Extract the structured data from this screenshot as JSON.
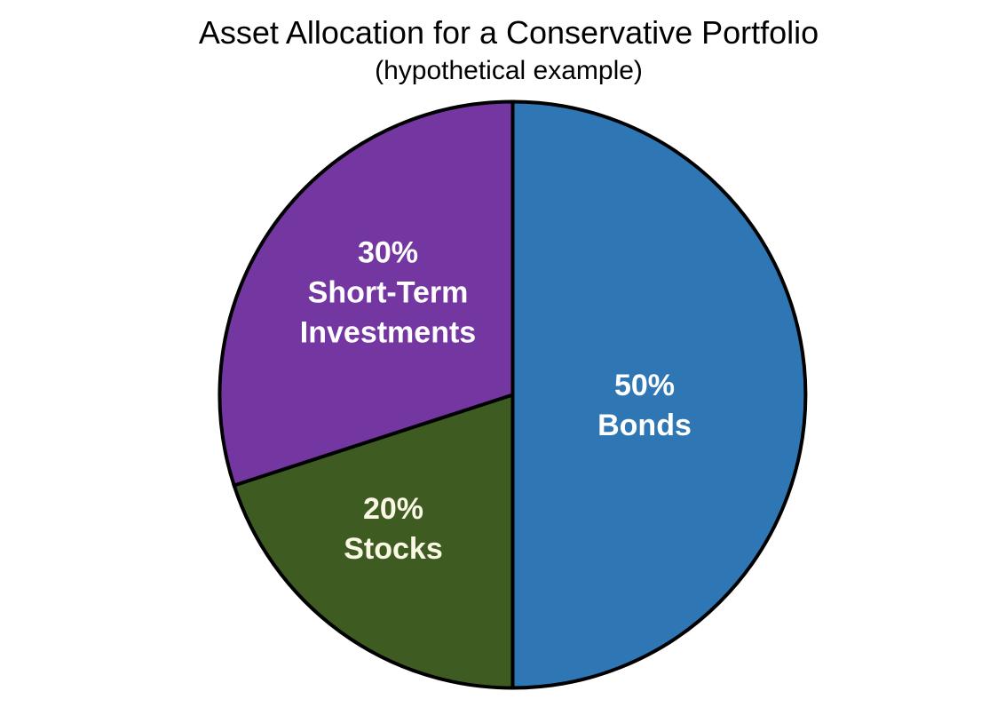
{
  "page": {
    "background_color": "#FFFFFF"
  },
  "chart_data": {
    "type": "pie",
    "title": "Asset Allocation for a Conservative Portfolio",
    "subtitle": "(hypothetical example)",
    "start_angle_deg": 0,
    "direction": "clockwise",
    "outline_color": "#000000",
    "outline_width": 4,
    "legend": "none",
    "slices": [
      {
        "label": "Bonds",
        "value_pct": 50,
        "color": "#2F76B5",
        "text_color": "#FFFFFF",
        "label_lines": [
          "50%",
          "Bonds"
        ],
        "label_x": 726,
        "label_y": 457
      },
      {
        "label": "Stocks",
        "value_pct": 20,
        "color": "#3E5C22",
        "text_color": "#FAF7E4",
        "label_lines": [
          "20%",
          "Stocks"
        ],
        "label_x": 443,
        "label_y": 596
      },
      {
        "label": "Short-Term Investments",
        "value_pct": 30,
        "color": "#7437A1",
        "text_color": "#FFFFFF",
        "label_lines": [
          "30%",
          "Short-Term",
          "Investments"
        ],
        "label_x": 437,
        "label_y": 330
      }
    ]
  }
}
